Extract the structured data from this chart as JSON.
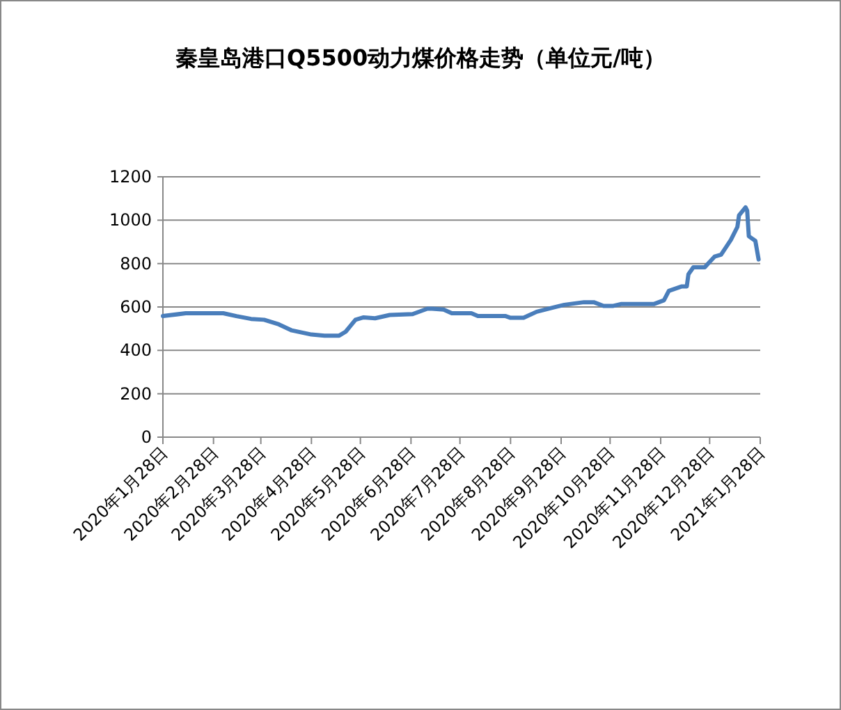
{
  "chart_data": {
    "type": "line",
    "title": "秦皇岛港口Q5500动力煤价格走势（单位元/吨）",
    "x": [
      "2020-01-28",
      "2020-02-11",
      "2020-03-05",
      "2020-03-13",
      "2020-03-22",
      "2020-03-30",
      "2020-04-08",
      "2020-04-16",
      "2020-04-28",
      "2020-05-06",
      "2020-05-15",
      "2020-05-19",
      "2020-05-25",
      "2020-05-30",
      "2020-06-06",
      "2020-06-15",
      "2020-06-29",
      "2020-07-08",
      "2020-07-11",
      "2020-07-18",
      "2020-07-23",
      "2020-08-04",
      "2020-08-08",
      "2020-08-25",
      "2020-08-28",
      "2020-09-05",
      "2020-09-13",
      "2020-09-23",
      "2020-09-30",
      "2020-10-12",
      "2020-10-18",
      "2020-10-24",
      "2020-10-30",
      "2020-11-04",
      "2020-11-24",
      "2020-11-30",
      "2020-12-03",
      "2020-12-11",
      "2020-12-14",
      "2020-12-15",
      "2020-12-18",
      "2020-12-25",
      "2020-12-31",
      "2021-01-04",
      "2021-01-10",
      "2021-01-14",
      "2021-01-15",
      "2021-01-19",
      "2021-01-20",
      "2021-01-21",
      "2021-01-25",
      "2021-01-27"
    ],
    "series": [
      {
        "color": "#4a7ebb",
        "values": [
          558,
          571,
          571,
          558,
          545,
          541,
          520,
          492,
          473,
          468,
          468,
          486,
          541,
          552,
          548,
          563,
          567,
          592,
          592,
          588,
          571,
          571,
          558,
          558,
          550,
          550,
          578,
          597,
          610,
          622,
          622,
          605,
          605,
          614,
          614,
          631,
          674,
          695,
          695,
          751,
          783,
          783,
          832,
          841,
          909,
          969,
          1022,
          1059,
          1044,
          926,
          905,
          819
        ]
      }
    ],
    "ylim": [
      0,
      1200
    ],
    "yticks": [
      0,
      200,
      400,
      600,
      800,
      1000,
      1200
    ],
    "xlim": [
      "2020-01-28",
      "2021-01-28"
    ],
    "xticks": [
      {
        "value": "2020-01-28",
        "label": "2020年1月28日"
      },
      {
        "value": "2020-02-28",
        "label": "2020年2月28日"
      },
      {
        "value": "2020-03-28",
        "label": "2020年3月28日"
      },
      {
        "value": "2020-04-28",
        "label": "2020年4月28日"
      },
      {
        "value": "2020-05-28",
        "label": "2020年5月28日"
      },
      {
        "value": "2020-06-28",
        "label": "2020年6月28日"
      },
      {
        "value": "2020-07-28",
        "label": "2020年7月28日"
      },
      {
        "value": "2020-08-28",
        "label": "2020年8月28日"
      },
      {
        "value": "2020-09-28",
        "label": "2020年9月28日"
      },
      {
        "value": "2020-10-28",
        "label": "2020年10月28日"
      },
      {
        "value": "2020-11-28",
        "label": "2020年11月28日"
      },
      {
        "value": "2020-12-28",
        "label": "2020年12月28日"
      },
      {
        "value": "2021-01-28",
        "label": "2021年1月28日"
      }
    ],
    "grid": "y",
    "marker": "none",
    "line_style": "solid"
  }
}
